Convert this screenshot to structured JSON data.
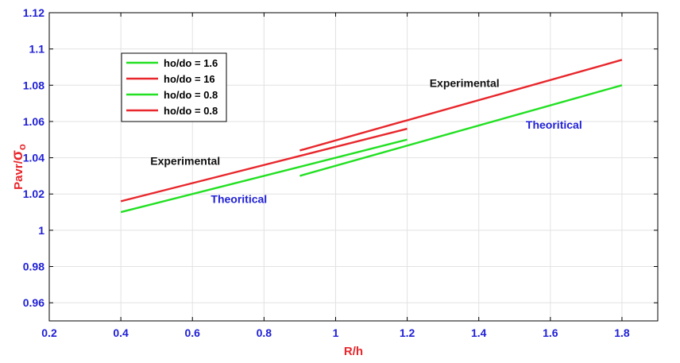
{
  "chart_data": {
    "type": "line",
    "title": "",
    "xlabel": "R/h",
    "ylabel_main": "Pavr/",
    "ylabel_sigma": "σ",
    "ylabel_sub": "o",
    "xlim": [
      0.2,
      1.9
    ],
    "ylim": [
      0.95,
      1.12
    ],
    "xticks": [
      0.2,
      0.4,
      0.6,
      0.8,
      1,
      1.2,
      1.4,
      1.6,
      1.8
    ],
    "xtick_labels": [
      "0.2",
      "0.4",
      "0.6",
      "0.8",
      "1",
      "1.2",
      "1.4",
      "1.6",
      "1.8"
    ],
    "yticks": [
      0.96,
      0.98,
      1,
      1.02,
      1.04,
      1.06,
      1.08,
      1.1,
      1.12
    ],
    "ytick_labels": [
      "0.96",
      "0.98",
      "1",
      "1.02",
      "1.04",
      "1.06",
      "1.08",
      "1.1",
      "1.12"
    ],
    "grid": true,
    "legend_position": "top-left",
    "series": [
      {
        "name": "ho/do = 1.6",
        "color": "#22e022",
        "x": [
          0.4,
          1.2
        ],
        "y": [
          1.01,
          1.05
        ]
      },
      {
        "name": "ho/do = 16",
        "color": "#e8262b",
        "x": [
          0.4,
          1.2
        ],
        "y": [
          1.016,
          1.056
        ]
      },
      {
        "name": "ho/do = 0.8",
        "color": "#22e022",
        "x": [
          0.9,
          1.8
        ],
        "y": [
          1.03,
          1.08
        ]
      },
      {
        "name": "ho/do = 0.8",
        "color": "#e8262b",
        "x": [
          0.9,
          1.8
        ],
        "y": [
          1.044,
          1.094
        ]
      }
    ],
    "annotations": [
      {
        "text": "Experimental",
        "x": 0.58,
        "y": 1.036,
        "style": "black"
      },
      {
        "text": "Theoritical",
        "x": 0.73,
        "y": 1.015,
        "style": "blue"
      },
      {
        "text": "Experimental",
        "x": 1.36,
        "y": 1.079,
        "style": "black"
      },
      {
        "text": "Theoritical",
        "x": 1.61,
        "y": 1.056,
        "style": "blue"
      }
    ]
  },
  "colors": {
    "axis_tick": "#1f1fd6",
    "axis_label": "#e8262b",
    "grid": "#e2e2e2"
  }
}
